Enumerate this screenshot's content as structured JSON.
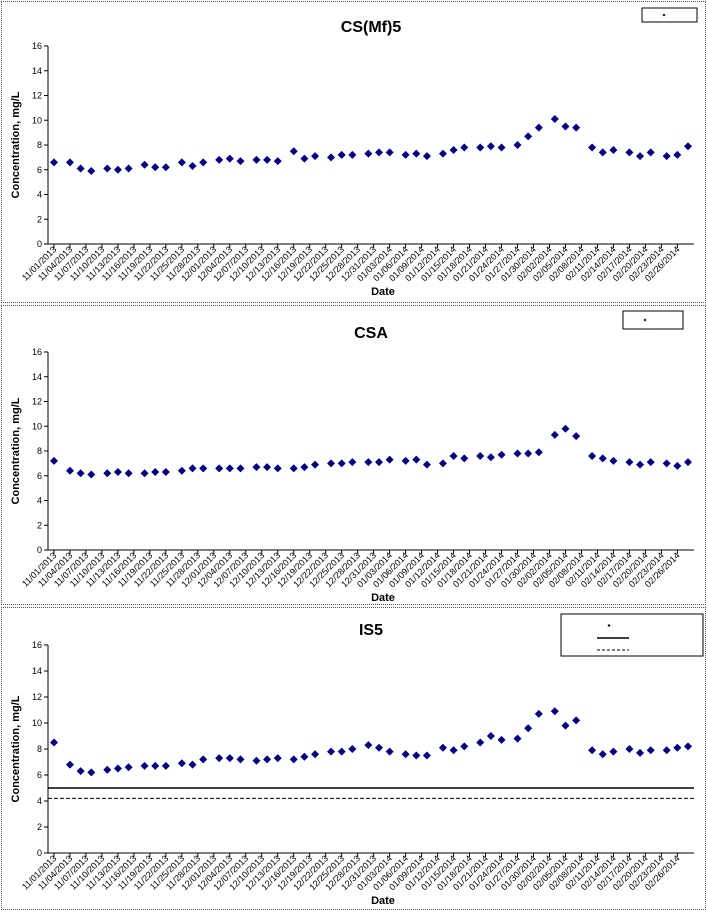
{
  "chart_data": [
    {
      "type": "scatter",
      "title": "CS(Mf)5",
      "xlabel": "Date",
      "ylabel": "Concentration, mg/L",
      "ylim": [
        0,
        16
      ],
      "yticks": [
        "0",
        "2",
        "4",
        "6",
        "8",
        "10",
        "12",
        "14",
        "16"
      ],
      "grid": false,
      "legend": "top-right",
      "legend_entries": [
        ""
      ],
      "x_tick_labels": [
        "11/01/2013",
        "11/04/2013",
        "11/07/2013",
        "11/10/2013",
        "11/13/2013",
        "11/16/2013",
        "11/19/2013",
        "11/22/2013",
        "11/25/2013",
        "11/28/2013",
        "12/01/2013",
        "12/04/2013",
        "12/07/2013",
        "12/10/2013",
        "12/13/2013",
        "12/16/2013",
        "12/19/2013",
        "12/22/2013",
        "12/25/2013",
        "12/28/2013",
        "12/31/2013",
        "01/03/2014",
        "01/06/2014",
        "01/09/2014",
        "01/12/2014",
        "01/15/2014",
        "01/18/2014",
        "01/21/2014",
        "01/24/2014",
        "01/27/2014",
        "01/30/2014",
        "02/02/2014",
        "02/05/2014",
        "02/08/2014",
        "02/11/2014",
        "02/14/2014",
        "02/17/2014",
        "02/20/2014",
        "02/23/2014",
        "02/26/2014"
      ],
      "x_start": "2013-11-01",
      "x_end": "2014-02-28",
      "series": [
        {
          "color": "#000080",
          "marker": "diamond",
          "points": [
            [
              "2013-11-01",
              6.6
            ],
            [
              "2013-11-04",
              6.6
            ],
            [
              "2013-11-06",
              6.1
            ],
            [
              "2013-11-08",
              5.9
            ],
            [
              "2013-11-11",
              6.1
            ],
            [
              "2013-11-13",
              6.0
            ],
            [
              "2013-11-15",
              6.1
            ],
            [
              "2013-11-18",
              6.4
            ],
            [
              "2013-11-20",
              6.2
            ],
            [
              "2013-11-22",
              6.2
            ],
            [
              "2013-11-25",
              6.6
            ],
            [
              "2013-11-27",
              6.3
            ],
            [
              "2013-11-29",
              6.6
            ],
            [
              "2013-12-02",
              6.8
            ],
            [
              "2013-12-04",
              6.9
            ],
            [
              "2013-12-06",
              6.7
            ],
            [
              "2013-12-09",
              6.8
            ],
            [
              "2013-12-11",
              6.8
            ],
            [
              "2013-12-13",
              6.7
            ],
            [
              "2013-12-16",
              7.5
            ],
            [
              "2013-12-18",
              6.9
            ],
            [
              "2013-12-20",
              7.1
            ],
            [
              "2013-12-23",
              7.0
            ],
            [
              "2013-12-25",
              7.2
            ],
            [
              "2013-12-27",
              7.2
            ],
            [
              "2013-12-30",
              7.3
            ],
            [
              "2014-01-01",
              7.4
            ],
            [
              "2014-01-03",
              7.4
            ],
            [
              "2014-01-06",
              7.2
            ],
            [
              "2014-01-08",
              7.3
            ],
            [
              "2014-01-10",
              7.1
            ],
            [
              "2014-01-13",
              7.3
            ],
            [
              "2014-01-15",
              7.6
            ],
            [
              "2014-01-17",
              7.8
            ],
            [
              "2014-01-20",
              7.8
            ],
            [
              "2014-01-22",
              7.9
            ],
            [
              "2014-01-24",
              7.8
            ],
            [
              "2014-01-27",
              8.0
            ],
            [
              "2014-01-29",
              8.7
            ],
            [
              "2014-01-31",
              9.4
            ],
            [
              "2014-02-03",
              10.1
            ],
            [
              "2014-02-05",
              9.5
            ],
            [
              "2014-02-07",
              9.4
            ],
            [
              "2014-02-10",
              7.8
            ],
            [
              "2014-02-12",
              7.4
            ],
            [
              "2014-02-14",
              7.6
            ],
            [
              "2014-02-17",
              7.4
            ],
            [
              "2014-02-19",
              7.1
            ],
            [
              "2014-02-21",
              7.4
            ],
            [
              "2014-02-24",
              7.1
            ],
            [
              "2014-02-26",
              7.2
            ],
            [
              "2014-02-28",
              7.9
            ]
          ]
        }
      ]
    },
    {
      "type": "scatter",
      "title": "CSA",
      "xlabel": "Date",
      "ylabel": "Concentration, mg/L",
      "ylim": [
        0,
        16
      ],
      "yticks": [
        "0",
        "2",
        "4",
        "6",
        "8",
        "10",
        "12",
        "14",
        "16"
      ],
      "grid": false,
      "legend": "top-right",
      "legend_entries": [
        ""
      ],
      "x_tick_labels": [
        "11/01/2013",
        "11/04/2013",
        "11/07/2013",
        "11/10/2013",
        "11/13/2013",
        "11/16/2013",
        "11/19/2013",
        "11/22/2013",
        "11/25/2013",
        "11/28/2013",
        "12/01/2013",
        "12/04/2013",
        "12/07/2013",
        "12/10/2013",
        "12/13/2013",
        "12/16/2013",
        "12/19/2013",
        "12/22/2013",
        "12/25/2013",
        "12/28/2013",
        "12/31/2013",
        "01/03/2014",
        "01/06/2014",
        "01/09/2014",
        "01/12/2014",
        "01/15/2014",
        "01/18/2014",
        "01/21/2014",
        "01/24/2014",
        "01/27/2014",
        "01/30/2014",
        "02/02/2014",
        "02/05/2014",
        "02/08/2014",
        "02/11/2014",
        "02/14/2014",
        "02/17/2014",
        "02/20/2014",
        "02/23/2014",
        "02/26/2014"
      ],
      "x_start": "2013-11-01",
      "x_end": "2014-02-28",
      "series": [
        {
          "color": "#000080",
          "marker": "diamond",
          "points": [
            [
              "2013-11-01",
              7.2
            ],
            [
              "2013-11-04",
              6.4
            ],
            [
              "2013-11-06",
              6.2
            ],
            [
              "2013-11-08",
              6.1
            ],
            [
              "2013-11-11",
              6.2
            ],
            [
              "2013-11-13",
              6.3
            ],
            [
              "2013-11-15",
              6.2
            ],
            [
              "2013-11-18",
              6.2
            ],
            [
              "2013-11-20",
              6.3
            ],
            [
              "2013-11-22",
              6.3
            ],
            [
              "2013-11-25",
              6.4
            ],
            [
              "2013-11-27",
              6.6
            ],
            [
              "2013-11-29",
              6.6
            ],
            [
              "2013-12-02",
              6.6
            ],
            [
              "2013-12-04",
              6.6
            ],
            [
              "2013-12-06",
              6.6
            ],
            [
              "2013-12-09",
              6.7
            ],
            [
              "2013-12-11",
              6.7
            ],
            [
              "2013-12-13",
              6.6
            ],
            [
              "2013-12-16",
              6.6
            ],
            [
              "2013-12-18",
              6.7
            ],
            [
              "2013-12-20",
              6.9
            ],
            [
              "2013-12-23",
              7.0
            ],
            [
              "2013-12-25",
              7.0
            ],
            [
              "2013-12-27",
              7.1
            ],
            [
              "2013-12-30",
              7.1
            ],
            [
              "2014-01-01",
              7.1
            ],
            [
              "2014-01-03",
              7.3
            ],
            [
              "2014-01-06",
              7.2
            ],
            [
              "2014-01-08",
              7.3
            ],
            [
              "2014-01-10",
              6.9
            ],
            [
              "2014-01-13",
              7.0
            ],
            [
              "2014-01-15",
              7.6
            ],
            [
              "2014-01-17",
              7.4
            ],
            [
              "2014-01-20",
              7.6
            ],
            [
              "2014-01-22",
              7.5
            ],
            [
              "2014-01-24",
              7.7
            ],
            [
              "2014-01-27",
              7.8
            ],
            [
              "2014-01-29",
              7.8
            ],
            [
              "2014-01-31",
              7.9
            ],
            [
              "2014-02-03",
              9.3
            ],
            [
              "2014-02-05",
              9.8
            ],
            [
              "2014-02-07",
              9.2
            ],
            [
              "2014-02-10",
              7.6
            ],
            [
              "2014-02-12",
              7.4
            ],
            [
              "2014-02-14",
              7.2
            ],
            [
              "2014-02-17",
              7.1
            ],
            [
              "2014-02-19",
              6.9
            ],
            [
              "2014-02-21",
              7.1
            ],
            [
              "2014-02-24",
              7.0
            ],
            [
              "2014-02-26",
              6.8
            ],
            [
              "2014-02-28",
              7.1
            ]
          ]
        }
      ]
    },
    {
      "type": "scatter",
      "title": "IS5",
      "xlabel": "Date",
      "ylabel": "Concentration, mg/L",
      "ylim": [
        0,
        16
      ],
      "yticks": [
        "0",
        "2",
        "4",
        "6",
        "8",
        "10",
        "12",
        "14",
        "16"
      ],
      "grid": false,
      "legend": "top-right",
      "legend_entries": [
        "",
        "",
        ""
      ],
      "x_tick_labels": [
        "11/01/2013",
        "11/04/2013",
        "11/07/2013",
        "11/10/2013",
        "11/13/2013",
        "11/16/2013",
        "11/19/2013",
        "11/22/2013",
        "11/25/2013",
        "11/28/2013",
        "12/01/2013",
        "12/04/2013",
        "12/07/2013",
        "12/10/2013",
        "12/13/2013",
        "12/16/2013",
        "12/19/2013",
        "12/22/2013",
        "12/25/2013",
        "12/28/2013",
        "12/31/2013",
        "01/03/2014",
        "01/06/2014",
        "01/09/2014",
        "01/12/2014",
        "01/15/2014",
        "01/18/2014",
        "01/21/2014",
        "01/24/2014",
        "01/27/2014",
        "01/30/2014",
        "02/02/2014",
        "02/05/2014",
        "02/08/2014",
        "02/11/2014",
        "02/14/2014",
        "02/17/2014",
        "02/20/2014",
        "02/23/2014",
        "02/26/2014"
      ],
      "x_start": "2013-11-01",
      "x_end": "2014-02-28",
      "hlines": [
        {
          "y": 5.0,
          "style": "solid"
        },
        {
          "y": 4.2,
          "style": "dashed"
        }
      ],
      "series": [
        {
          "color": "#000080",
          "marker": "diamond",
          "points": [
            [
              "2013-11-01",
              8.5
            ],
            [
              "2013-11-04",
              6.8
            ],
            [
              "2013-11-06",
              6.3
            ],
            [
              "2013-11-08",
              6.2
            ],
            [
              "2013-11-11",
              6.4
            ],
            [
              "2013-11-13",
              6.5
            ],
            [
              "2013-11-15",
              6.6
            ],
            [
              "2013-11-18",
              6.7
            ],
            [
              "2013-11-20",
              6.7
            ],
            [
              "2013-11-22",
              6.7
            ],
            [
              "2013-11-25",
              6.9
            ],
            [
              "2013-11-27",
              6.8
            ],
            [
              "2013-11-29",
              7.2
            ],
            [
              "2013-12-02",
              7.3
            ],
            [
              "2013-12-04",
              7.3
            ],
            [
              "2013-12-06",
              7.2
            ],
            [
              "2013-12-09",
              7.1
            ],
            [
              "2013-12-11",
              7.2
            ],
            [
              "2013-12-13",
              7.3
            ],
            [
              "2013-12-16",
              7.2
            ],
            [
              "2013-12-18",
              7.4
            ],
            [
              "2013-12-20",
              7.6
            ],
            [
              "2013-12-23",
              7.8
            ],
            [
              "2013-12-25",
              7.8
            ],
            [
              "2013-12-27",
              8.0
            ],
            [
              "2013-12-30",
              8.3
            ],
            [
              "2014-01-01",
              8.1
            ],
            [
              "2014-01-03",
              7.8
            ],
            [
              "2014-01-06",
              7.6
            ],
            [
              "2014-01-08",
              7.5
            ],
            [
              "2014-01-10",
              7.5
            ],
            [
              "2014-01-13",
              8.1
            ],
            [
              "2014-01-15",
              7.9
            ],
            [
              "2014-01-17",
              8.2
            ],
            [
              "2014-01-20",
              8.5
            ],
            [
              "2014-01-22",
              9.0
            ],
            [
              "2014-01-24",
              8.7
            ],
            [
              "2014-01-27",
              8.8
            ],
            [
              "2014-01-29",
              9.6
            ],
            [
              "2014-01-31",
              10.7
            ],
            [
              "2014-02-03",
              10.9
            ],
            [
              "2014-02-05",
              9.8
            ],
            [
              "2014-02-07",
              10.2
            ],
            [
              "2014-02-10",
              7.9
            ],
            [
              "2014-02-12",
              7.6
            ],
            [
              "2014-02-14",
              7.8
            ],
            [
              "2014-02-17",
              8.0
            ],
            [
              "2014-02-19",
              7.7
            ],
            [
              "2014-02-21",
              7.9
            ],
            [
              "2014-02-24",
              7.9
            ],
            [
              "2014-02-26",
              8.1
            ],
            [
              "2014-02-28",
              8.2
            ]
          ]
        }
      ]
    }
  ]
}
